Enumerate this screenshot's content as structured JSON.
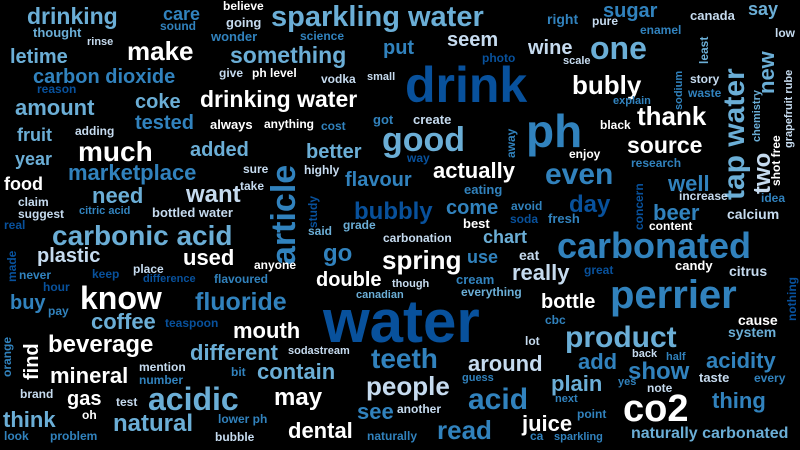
{
  "palette": {
    "white": "#ffffff",
    "pale": "#c6dbef",
    "light": "#6baed6",
    "mid": "#3182bd",
    "dark": "#08519c",
    "deep": "#08306b"
  },
  "words": [
    {
      "text": "water"
    },
    {
      "text": "drink"
    },
    {
      "text": "ph"
    },
    {
      "text": "perrier"
    },
    {
      "text": "carbonated"
    },
    {
      "text": "sparkling water"
    },
    {
      "text": "carbonic acid"
    },
    {
      "text": "article"
    },
    {
      "text": "tap water"
    },
    {
      "text": "know"
    },
    {
      "text": "co2"
    },
    {
      "text": "good"
    },
    {
      "text": "acidic"
    },
    {
      "text": "product"
    },
    {
      "text": "one"
    },
    {
      "text": "drinking water"
    },
    {
      "text": "fluoride"
    },
    {
      "text": "even"
    },
    {
      "text": "something"
    },
    {
      "text": "drinking"
    },
    {
      "text": "bubly"
    },
    {
      "text": "much"
    },
    {
      "text": "make"
    },
    {
      "text": "beverage"
    },
    {
      "text": "amount"
    },
    {
      "text": "marketplace"
    },
    {
      "text": "carbon dioxide"
    },
    {
      "text": "thank"
    },
    {
      "text": "source"
    },
    {
      "text": "spring"
    },
    {
      "text": "teeth"
    },
    {
      "text": "mineral"
    },
    {
      "text": "people"
    },
    {
      "text": "acid"
    },
    {
      "text": "plain"
    },
    {
      "text": "show"
    },
    {
      "text": "thing"
    },
    {
      "text": "natural"
    },
    {
      "text": "naturally carbonated"
    },
    {
      "text": "dental"
    },
    {
      "text": "read"
    },
    {
      "text": "around"
    },
    {
      "text": "contain"
    },
    {
      "text": "may"
    },
    {
      "text": "juice"
    },
    {
      "text": "mouth"
    },
    {
      "text": "different"
    },
    {
      "text": "coffee"
    },
    {
      "text": "plastic"
    },
    {
      "text": "used"
    },
    {
      "text": "want"
    },
    {
      "text": "need"
    },
    {
      "text": "added"
    },
    {
      "text": "better"
    },
    {
      "text": "actually"
    },
    {
      "text": "flavour"
    },
    {
      "text": "coke"
    },
    {
      "text": "tested"
    },
    {
      "text": "fruit"
    },
    {
      "text": "year"
    },
    {
      "text": "food"
    },
    {
      "text": "bottled water"
    },
    {
      "text": "letime"
    },
    {
      "text": "put"
    },
    {
      "text": "seem"
    },
    {
      "text": "wine"
    },
    {
      "text": "sugar"
    },
    {
      "text": "care"
    },
    {
      "text": "right"
    },
    {
      "text": "pure"
    },
    {
      "text": "canada"
    },
    {
      "text": "say"
    },
    {
      "text": "new"
    },
    {
      "text": "two"
    },
    {
      "text": "well"
    },
    {
      "text": "beer"
    },
    {
      "text": "day"
    },
    {
      "text": "bubbly"
    },
    {
      "text": "come"
    },
    {
      "text": "chart"
    },
    {
      "text": "eat"
    },
    {
      "text": "really"
    },
    {
      "text": "go"
    },
    {
      "text": "double"
    },
    {
      "text": "bottle"
    },
    {
      "text": "acidity"
    },
    {
      "text": "add"
    },
    {
      "text": "find"
    },
    {
      "text": "gas"
    },
    {
      "text": "think"
    },
    {
      "text": "buy"
    },
    {
      "text": "see"
    },
    {
      "text": "cause"
    },
    {
      "text": "system"
    },
    {
      "text": "citrus"
    },
    {
      "text": "candy"
    },
    {
      "text": "calcium"
    },
    {
      "text": "believe"
    },
    {
      "text": "going"
    },
    {
      "text": "wonder"
    },
    {
      "text": "sound"
    },
    {
      "text": "science"
    },
    {
      "text": "thought"
    },
    {
      "text": "rinse"
    },
    {
      "text": "give"
    },
    {
      "text": "ph level"
    },
    {
      "text": "vodka"
    },
    {
      "text": "small"
    },
    {
      "text": "reason"
    },
    {
      "text": "photo"
    },
    {
      "text": "scale"
    },
    {
      "text": "enamel"
    },
    {
      "text": "least"
    },
    {
      "text": "low"
    },
    {
      "text": "sodium"
    },
    {
      "text": "story"
    },
    {
      "text": "waste"
    },
    {
      "text": "explain"
    },
    {
      "text": "chemistry"
    },
    {
      "text": "shot free"
    },
    {
      "text": "grapefruit rube"
    },
    {
      "text": "black"
    },
    {
      "text": "enjoy"
    },
    {
      "text": "research"
    },
    {
      "text": "concern"
    },
    {
      "text": "increase"
    },
    {
      "text": "idea"
    },
    {
      "text": "content"
    },
    {
      "text": "adding"
    },
    {
      "text": "always"
    },
    {
      "text": "anything"
    },
    {
      "text": "got"
    },
    {
      "text": "create"
    },
    {
      "text": "cost"
    },
    {
      "text": "away"
    },
    {
      "text": "sure"
    },
    {
      "text": "highly"
    },
    {
      "text": "way"
    },
    {
      "text": "take"
    },
    {
      "text": "eating"
    },
    {
      "text": "avoid"
    },
    {
      "text": "soda"
    },
    {
      "text": "fresh"
    },
    {
      "text": "best"
    },
    {
      "text": "claim"
    },
    {
      "text": "suggest"
    },
    {
      "text": "citric acid"
    },
    {
      "text": "study"
    },
    {
      "text": "said"
    },
    {
      "text": "grade"
    },
    {
      "text": "carbonation"
    },
    {
      "text": "real"
    },
    {
      "text": "made"
    },
    {
      "text": "never"
    },
    {
      "text": "hour"
    },
    {
      "text": "keep"
    },
    {
      "text": "place"
    },
    {
      "text": "difference"
    },
    {
      "text": "flavoured"
    },
    {
      "text": "anyone"
    },
    {
      "text": "though"
    },
    {
      "text": "canadian"
    },
    {
      "text": "cream"
    },
    {
      "text": "everything"
    },
    {
      "text": "use"
    },
    {
      "text": "great"
    },
    {
      "text": "nothing"
    },
    {
      "text": "pay"
    },
    {
      "text": "teaspoon"
    },
    {
      "text": "cbc"
    },
    {
      "text": "lot"
    },
    {
      "text": "back"
    },
    {
      "text": "half"
    },
    {
      "text": "orange"
    },
    {
      "text": "mention"
    },
    {
      "text": "number"
    },
    {
      "text": "bit"
    },
    {
      "text": "sodastream"
    },
    {
      "text": "guess"
    },
    {
      "text": "taste"
    },
    {
      "text": "every"
    },
    {
      "text": "yes"
    },
    {
      "text": "note"
    },
    {
      "text": "brand"
    },
    {
      "text": "test"
    },
    {
      "text": "oh"
    },
    {
      "text": "lower ph"
    },
    {
      "text": "another"
    },
    {
      "text": "next"
    },
    {
      "text": "point"
    },
    {
      "text": "look"
    },
    {
      "text": "problem"
    },
    {
      "text": "bubble"
    },
    {
      "text": "naturally"
    },
    {
      "text": "ca"
    },
    {
      "text": "sparkling"
    }
  ]
}
